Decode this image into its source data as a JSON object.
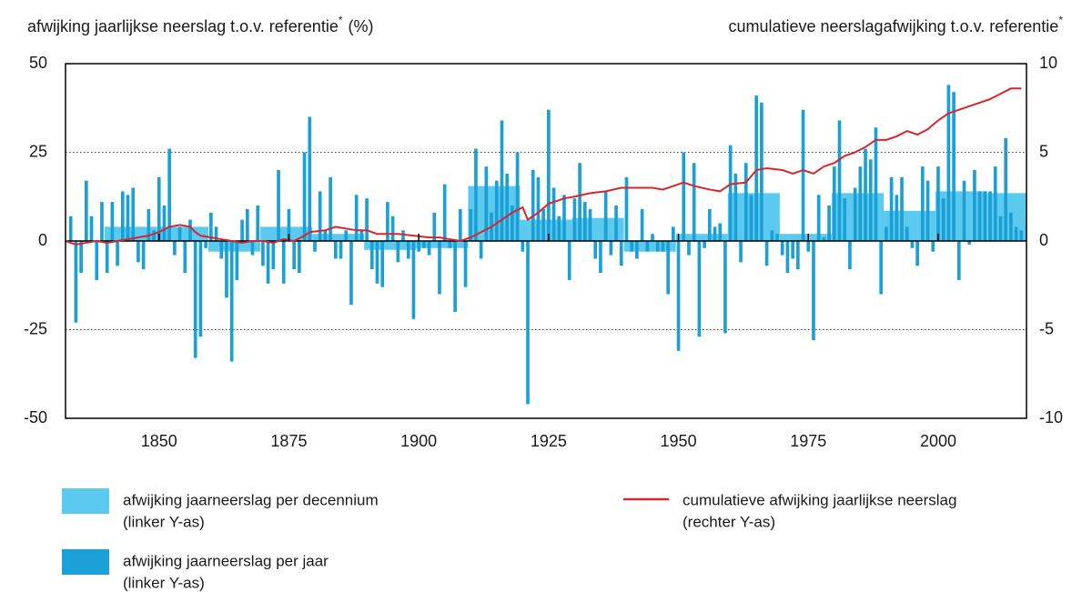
{
  "chart_data": {
    "type": "bar",
    "ylabel": "afwijking jaarlijkse neerslag t.o.v. referentie",
    "ylabel_unit": "(%)",
    "y2label": "cumulatieve neerslagafwijking t.o.v. referentie",
    "footnote_marker": "*",
    "xlim": [
      1832,
      2017
    ],
    "xticks": [
      1850,
      1875,
      1900,
      1925,
      1950,
      1975,
      2000
    ],
    "ylim": [
      -50,
      50
    ],
    "yticks": [
      -50,
      -25,
      0,
      25,
      50
    ],
    "y2lim": [
      -10,
      10
    ],
    "y2ticks": [
      -10,
      -5,
      0,
      5,
      10
    ],
    "grid": true,
    "series": [
      {
        "name": "afwijking jaarneerslag per decennium",
        "legend_note": "(linker Y-as)",
        "type": "bar",
        "color": "#5cc9ef",
        "x": [
          1840,
          1850,
          1860,
          1870,
          1880,
          1890,
          1900,
          1910,
          1920,
          1930,
          1940,
          1950,
          1960,
          1970,
          1980,
          1990,
          2000,
          2010
        ],
        "values": [
          4,
          4,
          -3,
          4,
          2,
          -2.5,
          -2,
          15.5,
          6,
          6.5,
          -3,
          2,
          13.5,
          2,
          13.5,
          8.5,
          14,
          13.5
        ]
      },
      {
        "name": "afwijking jaarneerslag per jaar",
        "legend_note": "(linker Y-as)",
        "type": "bar",
        "color": "#1a9fd6",
        "x": [
          1833,
          1834,
          1835,
          1836,
          1837,
          1838,
          1839,
          1840,
          1841,
          1842,
          1843,
          1844,
          1845,
          1846,
          1847,
          1848,
          1849,
          1850,
          1851,
          1852,
          1853,
          1854,
          1855,
          1856,
          1857,
          1858,
          1859,
          1860,
          1861,
          1862,
          1863,
          1864,
          1865,
          1866,
          1867,
          1868,
          1869,
          1870,
          1871,
          1872,
          1873,
          1874,
          1875,
          1876,
          1877,
          1878,
          1879,
          1880,
          1881,
          1882,
          1883,
          1884,
          1885,
          1886,
          1887,
          1888,
          1889,
          1890,
          1891,
          1892,
          1893,
          1894,
          1895,
          1896,
          1897,
          1898,
          1899,
          1900,
          1901,
          1902,
          1903,
          1904,
          1905,
          1906,
          1907,
          1908,
          1909,
          1910,
          1911,
          1912,
          1913,
          1914,
          1915,
          1916,
          1917,
          1918,
          1919,
          1920,
          1921,
          1922,
          1923,
          1924,
          1925,
          1926,
          1927,
          1928,
          1929,
          1930,
          1931,
          1932,
          1933,
          1934,
          1935,
          1936,
          1937,
          1938,
          1939,
          1940,
          1941,
          1942,
          1943,
          1944,
          1945,
          1946,
          1947,
          1948,
          1949,
          1950,
          1951,
          1952,
          1953,
          1954,
          1955,
          1956,
          1957,
          1958,
          1959,
          1960,
          1961,
          1962,
          1963,
          1964,
          1965,
          1966,
          1967,
          1968,
          1969,
          1970,
          1971,
          1972,
          1973,
          1974,
          1975,
          1976,
          1977,
          1978,
          1979,
          1980,
          1981,
          1982,
          1983,
          1984,
          1985,
          1986,
          1987,
          1988,
          1989,
          1990,
          1991,
          1992,
          1993,
          1994,
          1995,
          1996,
          1997,
          1998,
          1999,
          2000,
          2001,
          2002,
          2003,
          2004,
          2005,
          2006,
          2007,
          2008,
          2009,
          2010,
          2011,
          2012,
          2013,
          2014,
          2015,
          2016
        ],
        "values": [
          7,
          -23,
          -9,
          17,
          7,
          -11,
          11,
          -9,
          11,
          -7,
          14,
          13,
          15,
          -6,
          -8,
          9,
          3,
          18,
          10,
          26,
          -4,
          4,
          -9,
          6,
          -33,
          -27,
          -2,
          8,
          4,
          -5,
          -16,
          -34,
          -11,
          6,
          9,
          -4,
          10,
          -7,
          -12,
          -8,
          20,
          -12,
          9,
          -8,
          -9,
          25,
          35,
          -3,
          14,
          3,
          18,
          -5,
          -5,
          3,
          -18,
          13,
          3,
          12,
          -8,
          -12,
          -13,
          11,
          7,
          -6,
          3,
          -5,
          -22,
          -3,
          -2,
          -4,
          8,
          -15,
          16,
          -2,
          -20,
          9,
          -13,
          9,
          26,
          -5,
          21,
          8,
          17,
          34,
          19,
          10,
          25,
          -3,
          -46,
          20,
          18,
          9,
          37,
          15,
          7,
          13,
          -11,
          12,
          22,
          11,
          9,
          -5,
          -9,
          14,
          -4,
          10,
          -7,
          18,
          -3,
          -5,
          9,
          -3,
          2,
          -3,
          -3,
          -15,
          4,
          -31,
          25,
          -4,
          22,
          -27,
          -2,
          9,
          4,
          5,
          -26,
          27,
          19,
          -6,
          22,
          13,
          41,
          39,
          -7,
          3,
          2,
          -4,
          -9,
          -5,
          -8,
          37,
          -3,
          -28,
          13,
          1,
          10,
          21,
          34,
          12,
          -8,
          15,
          21,
          26,
          23,
          32,
          -15,
          4,
          18,
          13,
          18,
          4,
          -2,
          -7,
          21,
          17,
          -3,
          21,
          12,
          44,
          42,
          -11,
          17,
          -1,
          20,
          14,
          14,
          14,
          21,
          7,
          29,
          8,
          4,
          3
        ]
      },
      {
        "name": "cumulatieve afwijking jaarlijkse neerslag",
        "legend_note": "(rechter Y-as)",
        "type": "line",
        "axis": "y2",
        "color": "#d7262b",
        "x": [
          1832,
          1834,
          1836,
          1838,
          1840,
          1842,
          1844,
          1846,
          1848,
          1850,
          1852,
          1854,
          1856,
          1857,
          1858,
          1860,
          1862,
          1864,
          1866,
          1868,
          1870,
          1872,
          1874,
          1876,
          1878,
          1879,
          1882,
          1884,
          1886,
          1888,
          1890,
          1892,
          1894,
          1896,
          1899,
          1902,
          1904,
          1906,
          1908,
          1910,
          1912,
          1914,
          1916,
          1918,
          1920,
          1921,
          1923,
          1925,
          1928,
          1930,
          1933,
          1936,
          1939,
          1942,
          1945,
          1947,
          1949,
          1951,
          1953,
          1956,
          1958,
          1960,
          1963,
          1965,
          1967,
          1970,
          1972,
          1974,
          1976,
          1978,
          1980,
          1982,
          1984,
          1986,
          1988,
          1990,
          1992,
          1994,
          1996,
          1998,
          2000,
          2002,
          2004,
          2006,
          2008,
          2010,
          2012,
          2014,
          2016
        ],
        "values": [
          0,
          -0.2,
          -0.1,
          0,
          -0.1,
          0,
          0.1,
          0.2,
          0.3,
          0.5,
          0.8,
          0.9,
          0.8,
          0.5,
          0.3,
          0.2,
          0.1,
          0,
          -0.1,
          0,
          0,
          -0.1,
          0.1,
          0,
          0.3,
          0.5,
          0.6,
          0.8,
          0.7,
          0.6,
          0.6,
          0.4,
          0.4,
          0.4,
          0.3,
          0.2,
          0.2,
          0.1,
          0,
          0.2,
          0.5,
          0.8,
          1.2,
          1.6,
          1.9,
          1.2,
          1.6,
          2.1,
          2.4,
          2.5,
          2.7,
          2.8,
          3.0,
          3.0,
          3.0,
          2.9,
          3.1,
          3.3,
          3.1,
          2.9,
          2.8,
          3.2,
          3.3,
          4.0,
          4.1,
          4.0,
          3.8,
          4.0,
          3.8,
          4.2,
          4.4,
          4.8,
          5.0,
          5.3,
          5.7,
          5.7,
          5.9,
          6.2,
          6.0,
          6.3,
          6.8,
          7.2,
          7.4,
          7.6,
          7.8,
          8.0,
          8.3,
          8.6,
          8.6
        ]
      }
    ]
  }
}
